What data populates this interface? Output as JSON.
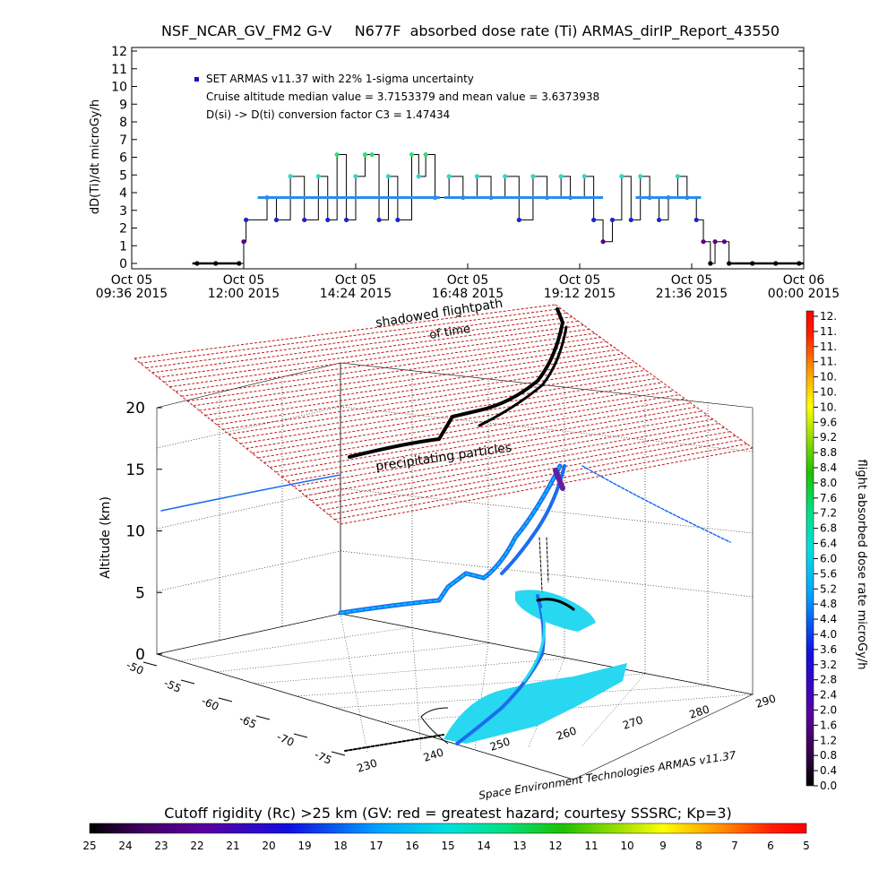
{
  "page": {
    "title": "NSF_NCAR_GV_FM2 G-V     N677F  absorbed dose rate (Ti) ARMAS_dirIP_Report_43550",
    "credit": "Space Environment Technologies ARMAS v11.37"
  },
  "chart_data": [
    {
      "type": "line",
      "name": "dose-rate-time-series",
      "ylabel": "dD(Ti)/dt microGy/h",
      "ylim": [
        0,
        12
      ],
      "yticks": [
        0,
        1,
        2,
        3,
        4,
        5,
        6,
        7,
        8,
        9,
        10,
        11,
        12
      ],
      "xtick_labels": [
        [
          "Oct 05",
          "09:36 2015"
        ],
        [
          "Oct 05",
          "12:00 2015"
        ],
        [
          "Oct 05",
          "14:24 2015"
        ],
        [
          "Oct 05",
          "16:48 2015"
        ],
        [
          "Oct 05",
          "19:12 2015"
        ],
        [
          "Oct 05",
          "21:36 2015"
        ],
        [
          "Oct 06",
          "00:00 2015"
        ]
      ],
      "xlim_hours": [
        9.6,
        24.0
      ],
      "annotations": [
        "SET ARMAS v11.37 with 22% 1-sigma uncertainty",
        "Cruise altitude median value = 3.7153379 and mean value = 3.6373938",
        "D(si) -> D(ti) conversion factor C3 = 1.47434"
      ],
      "legend_marker_color": "#1010d0",
      "levels": [
        1.23,
        2.46,
        3.72,
        4.92,
        6.15
      ],
      "points": [
        {
          "t": 11.0,
          "v": 0
        },
        {
          "t": 11.4,
          "v": 0
        },
        {
          "t": 11.9,
          "v": 0
        },
        {
          "t": 12.0,
          "v": 1.23
        },
        {
          "t": 12.05,
          "v": 2.46
        },
        {
          "t": 12.5,
          "v": 3.72
        },
        {
          "t": 12.7,
          "v": 2.46
        },
        {
          "t": 13.0,
          "v": 4.92
        },
        {
          "t": 13.3,
          "v": 2.46
        },
        {
          "t": 13.6,
          "v": 4.92
        },
        {
          "t": 13.8,
          "v": 2.46
        },
        {
          "t": 14.0,
          "v": 6.15
        },
        {
          "t": 14.2,
          "v": 2.46
        },
        {
          "t": 14.4,
          "v": 4.92
        },
        {
          "t": 14.6,
          "v": 6.15
        },
        {
          "t": 14.75,
          "v": 6.15
        },
        {
          "t": 14.9,
          "v": 2.46
        },
        {
          "t": 15.1,
          "v": 4.92
        },
        {
          "t": 15.3,
          "v": 2.46
        },
        {
          "t": 15.6,
          "v": 6.15
        },
        {
          "t": 15.75,
          "v": 4.92
        },
        {
          "t": 15.9,
          "v": 6.15
        },
        {
          "t": 16.1,
          "v": 3.72
        },
        {
          "t": 16.4,
          "v": 4.92
        },
        {
          "t": 16.7,
          "v": 3.72
        },
        {
          "t": 17.0,
          "v": 4.92
        },
        {
          "t": 17.3,
          "v": 3.72
        },
        {
          "t": 17.6,
          "v": 4.92
        },
        {
          "t": 17.9,
          "v": 2.46
        },
        {
          "t": 18.2,
          "v": 4.92
        },
        {
          "t": 18.5,
          "v": 3.72
        },
        {
          "t": 18.8,
          "v": 4.92
        },
        {
          "t": 19.0,
          "v": 3.72
        },
        {
          "t": 19.3,
          "v": 4.92
        },
        {
          "t": 19.5,
          "v": 2.46
        },
        {
          "t": 19.7,
          "v": 1.23
        },
        {
          "t": 19.9,
          "v": 2.46
        },
        {
          "t": 20.1,
          "v": 4.92
        },
        {
          "t": 20.3,
          "v": 2.46
        },
        {
          "t": 20.5,
          "v": 4.92
        },
        {
          "t": 20.7,
          "v": 3.72
        },
        {
          "t": 20.9,
          "v": 2.46
        },
        {
          "t": 21.1,
          "v": 3.72
        },
        {
          "t": 21.3,
          "v": 4.92
        },
        {
          "t": 21.5,
          "v": 3.72
        },
        {
          "t": 21.7,
          "v": 2.46
        },
        {
          "t": 21.85,
          "v": 1.23
        },
        {
          "t": 22.0,
          "v": 0
        },
        {
          "t": 22.1,
          "v": 1.23
        },
        {
          "t": 22.3,
          "v": 1.23
        },
        {
          "t": 22.4,
          "v": 0
        },
        {
          "t": 22.9,
          "v": 0
        },
        {
          "t": 23.4,
          "v": 0
        },
        {
          "t": 23.9,
          "v": 0
        }
      ]
    },
    {
      "type": "scatter",
      "name": "3d-flight-track",
      "zlabel": "Altitude (km)",
      "zticks": [
        0,
        5,
        10,
        15,
        20
      ],
      "yticks_lat": [
        "-50",
        "-55",
        "-60",
        "-65",
        "-70",
        "-75"
      ],
      "xticks_lon": [
        "230",
        "240",
        "250",
        "260",
        "270",
        "280",
        "290"
      ],
      "labels": [
        "shadowed flightpath",
        "of time",
        "precipitating particles"
      ],
      "shadow_color": "#c01818"
    },
    {
      "type": "heatmap",
      "name": "dose-rate-colorbar",
      "label": "flight absorbed dose rate microGy/h",
      "tick_labels": [
        "12.",
        "11.",
        "11.",
        "11.",
        "10.",
        "10.",
        "10.",
        "9.6",
        "9.2",
        "8.8",
        "8.4",
        "8.0",
        "7.6",
        "7.2",
        "6.8",
        "6.4",
        "6.0",
        "5.6",
        "5.2",
        "4.8",
        "4.4",
        "4.0",
        "3.6",
        "3.2",
        "2.8",
        "2.4",
        "2.0",
        "1.6",
        "1.2",
        "0.8",
        "0.4",
        "0.0"
      ]
    },
    {
      "type": "heatmap",
      "name": "cutoff-rigidity-colorbar",
      "label": "Cutoff rigidity (Rc) >25 km (GV: red = greatest hazard; courtesy SSSRC; Kp=3)",
      "tick_labels": [
        "25",
        "24",
        "23",
        "22",
        "21",
        "20",
        "19",
        "18",
        "17",
        "16",
        "15",
        "14",
        "13",
        "12",
        "11",
        "10",
        "9",
        "8",
        "7",
        "6",
        "5"
      ]
    }
  ]
}
